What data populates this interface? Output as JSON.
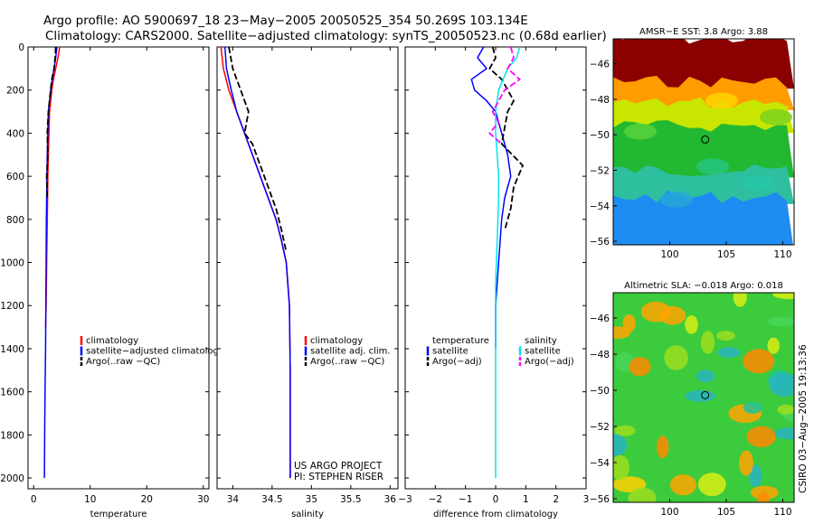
{
  "header": {
    "line1": "Argo profile: AO 5900697_18 23−May−2005 20050525_354 50.269S 103.134E",
    "line2": "Climatology: CARS2000. Satellite−adjusted climatology: synTS_20050523.nc (0.68d earlier)"
  },
  "colors": {
    "climatology": "#ff0000",
    "satellite": "#0000ff",
    "argo": "#000000",
    "salinity_diff": "#00e5ee",
    "salinity_argo_adj": "#ff00ff"
  },
  "chart_data": [
    {
      "id": "temperature",
      "type": "line",
      "xlabel": "temperature",
      "ylabel": "",
      "xlim": [
        -1,
        31
      ],
      "ylim": [
        2050,
        0
      ],
      "xticks": [
        0,
        10,
        20,
        30
      ],
      "yticks": [
        0,
        200,
        400,
        600,
        800,
        1000,
        1200,
        1400,
        1600,
        1800,
        2000
      ],
      "show_y_ticklabels": true,
      "legend": [
        "climatology",
        "satellite−adjusted climatology",
        "Argo(..raw −QC)"
      ],
      "series": [
        {
          "name": "climatology",
          "color": "red",
          "x": [
            4.6,
            4.3,
            3.9,
            3.5,
            3.2,
            3.0,
            2.8,
            2.7,
            2.6,
            2.5,
            2.45,
            2.4,
            2.3,
            2.2,
            2.1
          ],
          "y": [
            0,
            50,
            100,
            150,
            200,
            250,
            300,
            400,
            500,
            600,
            700,
            800,
            1000,
            1200,
            1300
          ]
        },
        {
          "name": "satellite",
          "color": "blue",
          "x": [
            4.1,
            3.9,
            3.6,
            3.3,
            3.0,
            2.8,
            2.6,
            2.5,
            2.4,
            2.35,
            2.3,
            2.25,
            2.2,
            2.15,
            2.1,
            2.0,
            1.95,
            1.9
          ],
          "y": [
            0,
            50,
            100,
            150,
            200,
            250,
            300,
            400,
            500,
            600,
            700,
            800,
            1000,
            1200,
            1400,
            1600,
            1800,
            2000
          ]
        },
        {
          "name": "Argo(..raw -QC)",
          "color": "black",
          "dash": true,
          "x": [
            3.9,
            3.8,
            3.6,
            3.2,
            3.0,
            2.6,
            2.4,
            2.5,
            2.3,
            2.4
          ],
          "y": [
            0,
            50,
            100,
            150,
            200,
            300,
            400,
            500,
            600,
            700
          ]
        }
      ]
    },
    {
      "id": "salinity",
      "type": "line",
      "xlabel": "salinity",
      "ylabel": "",
      "xlim": [
        33.8,
        36.1
      ],
      "ylim": [
        2050,
        0
      ],
      "xticks": [
        34,
        34.5,
        35,
        35.5,
        36
      ],
      "yticks": [
        0,
        200,
        400,
        600,
        800,
        1000,
        1200,
        1400,
        1600,
        1800,
        2000
      ],
      "show_y_ticklabels": false,
      "legend": [
        "climatology",
        "satellite adj. clim.",
        "Argo(..raw −QC)"
      ],
      "series": [
        {
          "name": "climatology",
          "color": "red",
          "x": [
            33.85,
            33.88,
            33.95,
            34.05,
            34.15,
            34.25,
            34.35,
            34.45,
            34.55,
            34.62,
            34.68,
            34.72,
            34.73,
            34.73
          ],
          "y": [
            0,
            100,
            200,
            300,
            400,
            500,
            600,
            700,
            800,
            900,
            1000,
            1200,
            1500,
            2000
          ]
        },
        {
          "name": "satellite",
          "color": "blue",
          "x": [
            33.9,
            33.92,
            33.98,
            34.05,
            34.15,
            34.25,
            34.35,
            34.45,
            34.55,
            34.62,
            34.68,
            34.72,
            34.73,
            34.73
          ],
          "y": [
            0,
            100,
            200,
            300,
            400,
            500,
            600,
            700,
            800,
            900,
            1000,
            1200,
            1500,
            2000
          ]
        },
        {
          "name": "Argo(..raw -QC)",
          "color": "black",
          "dash": true,
          "x": [
            33.95,
            34.0,
            34.05,
            34.1,
            34.2,
            34.15,
            34.25,
            34.35,
            34.45,
            34.55,
            34.62,
            34.68
          ],
          "y": [
            0,
            100,
            150,
            200,
            300,
            400,
            450,
            550,
            650,
            750,
            850,
            950
          ]
        }
      ]
    },
    {
      "id": "difference",
      "type": "line",
      "xlabel": "difference from climatology",
      "ylabel": "",
      "xlim": [
        -3,
        3
      ],
      "ylim": [
        2050,
        0
      ],
      "xticks": [
        -3,
        -2,
        -1,
        0,
        1,
        2,
        3
      ],
      "yticks": [
        0,
        200,
        400,
        600,
        800,
        1000,
        1200,
        1400,
        1600,
        1800,
        2000
      ],
      "show_y_ticklabels": false,
      "legend_left": [
        "temperature",
        "satellite",
        "Argo(−adj)"
      ],
      "legend_right": [
        "salinity",
        "satellite",
        "Argo(−adj)"
      ],
      "series": [
        {
          "name": "temperature satellite",
          "color": "blue",
          "x": [
            -0.4,
            -0.6,
            -0.3,
            -0.8,
            -0.7,
            -0.3,
            0.0,
            0.2,
            0.4,
            0.5,
            0.3,
            0.2,
            0.1,
            0.0,
            0.0
          ],
          "y": [
            0,
            50,
            100,
            150,
            200,
            250,
            300,
            400,
            500,
            600,
            700,
            800,
            1000,
            1200,
            1400
          ]
        },
        {
          "name": "temperature Argo(-adj)",
          "color": "black",
          "dash": true,
          "x": [
            -0.1,
            0.0,
            -0.2,
            0.2,
            0.6,
            0.4,
            0.2,
            0.9,
            0.6,
            0.5,
            0.3
          ],
          "y": [
            0,
            50,
            100,
            150,
            250,
            300,
            450,
            550,
            650,
            750,
            850
          ]
        },
        {
          "name": "salinity satellite",
          "color": "cyan",
          "x": [
            0.8,
            0.7,
            0.4,
            0.1,
            0.0,
            0.0,
            0.05,
            0.1,
            0.1,
            0.05,
            0.0,
            0.0,
            0.0,
            0.0
          ],
          "y": [
            0,
            50,
            100,
            200,
            300,
            400,
            500,
            600,
            700,
            900,
            1100,
            1400,
            1800,
            2000
          ]
        },
        {
          "name": "salinity Argo(-adj)",
          "color": "magenta",
          "dash": true,
          "x": [
            0.5,
            0.6,
            0.4,
            0.8,
            0.3,
            -0.1,
            0.1,
            -0.2,
            0.2
          ],
          "y": [
            0,
            50,
            100,
            150,
            200,
            300,
            350,
            400,
            450
          ]
        }
      ]
    },
    {
      "id": "sst-map",
      "type": "heatmap",
      "title": "AMSR−E SST: 3.8 Argo: 3.88",
      "xlim": [
        95,
        111
      ],
      "ylim": [
        -56.2,
        -44.6
      ],
      "xticks": [
        100,
        105,
        110
      ],
      "yticks": [
        -46,
        -48,
        -50,
        -52,
        -54,
        -56
      ],
      "marker": [
        103.134,
        -50.269
      ],
      "bands": [
        {
          "to_lat": -44.6,
          "from_lat": -47.0,
          "color": "#8b0000"
        },
        {
          "to_lat": -47.0,
          "from_lat": -48.2,
          "color": "#ff9c00"
        },
        {
          "to_lat": -48.2,
          "from_lat": -49.5,
          "color": "#c8e600"
        },
        {
          "to_lat": -49.5,
          "from_lat": -52.0,
          "color": "#22b832"
        },
        {
          "to_lat": -52.0,
          "from_lat": -53.5,
          "color": "#2ebf9f"
        },
        {
          "to_lat": -53.5,
          "from_lat": -56.2,
          "color": "#1e8cf0"
        }
      ]
    },
    {
      "id": "sla-map",
      "type": "heatmap",
      "title": "Altimetric SLA: −0.018 Argo: 0.018",
      "xlim": [
        95,
        111
      ],
      "ylim": [
        -56.2,
        -44.6
      ],
      "xticks": [
        100,
        105,
        110
      ],
      "yticks": [
        -46,
        -48,
        -50,
        -52,
        -54,
        -56
      ],
      "marker": [
        103.134,
        -50.269
      ],
      "base_color": "#3ccb3c"
    }
  ],
  "credits": {
    "line1": "US ARGO PROJECT",
    "line2": "PI: STEPHEN RISER"
  },
  "side_label": "CSIRO 03−Aug−2005 19:13:36"
}
